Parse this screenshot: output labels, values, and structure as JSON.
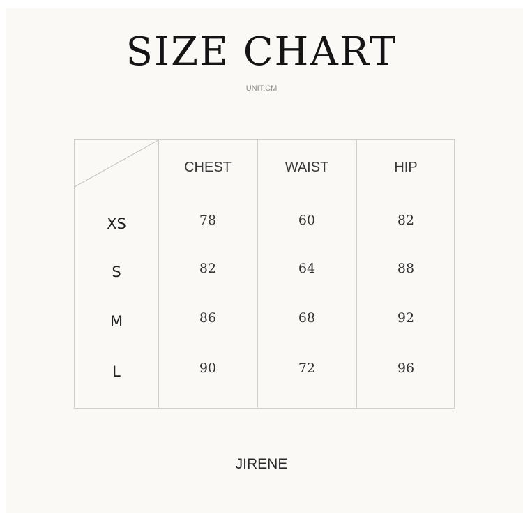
{
  "title": "SIZE CHART",
  "unit": "UNIT:CM",
  "table": {
    "columns": [
      "CHEST",
      "WAIST",
      "HIP"
    ],
    "rows": [
      {
        "size": "XS",
        "values": [
          "78",
          "60",
          "82"
        ]
      },
      {
        "size": "S",
        "values": [
          "82",
          "64",
          "88"
        ]
      },
      {
        "size": "M",
        "values": [
          "86",
          "68",
          "92"
        ]
      },
      {
        "size": "L",
        "values": [
          "90",
          "72",
          "96"
        ]
      }
    ]
  },
  "brand": "JIRENE",
  "colors": {
    "background": "#faf9f6",
    "grid": "#cfcfcf",
    "text": "#141414"
  }
}
